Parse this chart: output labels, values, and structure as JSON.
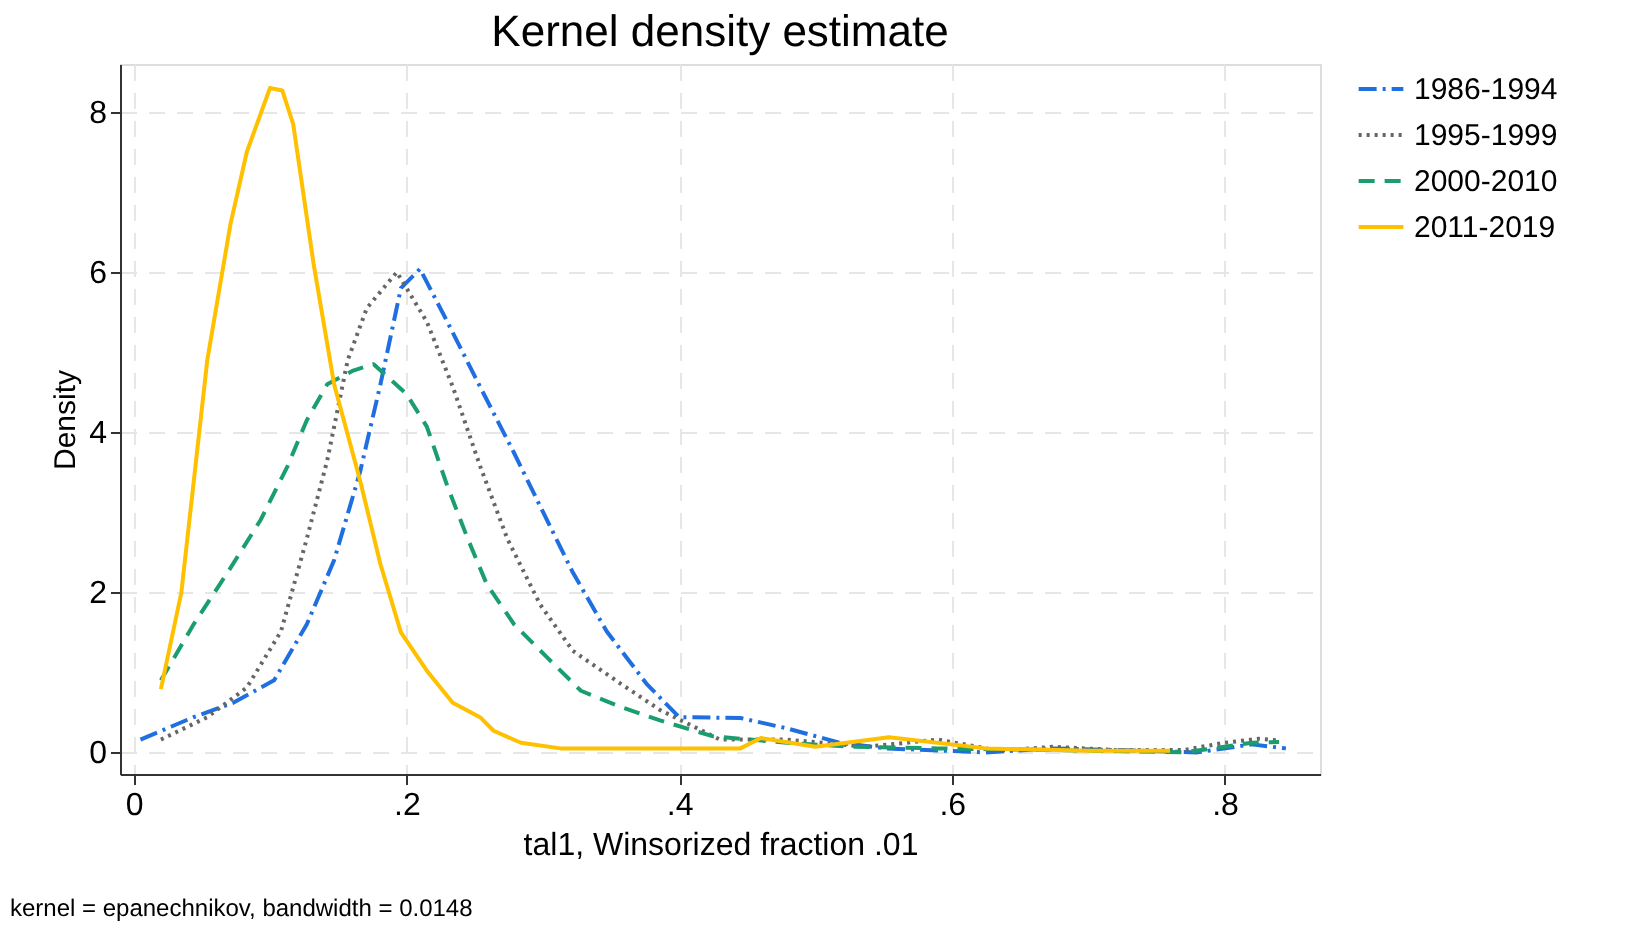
{
  "chart_data": {
    "type": "line",
    "title": "Kernel density estimate",
    "xlabel": "tal1, Winsorized fraction .01",
    "ylabel": "Density",
    "annotations": [
      "kernel = epanechnikov, bandwidth = 0.0148"
    ],
    "xlim": [
      -0.01,
      0.87
    ],
    "ylim": [
      -0.27,
      8.6
    ],
    "xticks": [
      0,
      {
        "value": 0.2,
        "label": ".2"
      },
      {
        "value": 0.4,
        "label": ".4"
      },
      {
        "value": 0.6,
        "label": ".6"
      },
      {
        "value": 0.8,
        "label": ".8"
      }
    ],
    "yticks": [
      0,
      2,
      4,
      6,
      8
    ],
    "grid": true,
    "legend": "right",
    "series": [
      {
        "name": "1986-1994",
        "color": "#1f6fe0",
        "line_style": "dashdot",
        "x": [
          0.005,
          0.044,
          0.073,
          0.103,
          0.127,
          0.147,
          0.166,
          0.181,
          0.196,
          0.21,
          0.23,
          0.254,
          0.279,
          0.298,
          0.322,
          0.347,
          0.376,
          0.4,
          0.445,
          0.479,
          0.518,
          0.552,
          0.625,
          0.674,
          0.72,
          0.78,
          0.82,
          0.845
        ],
        "values": [
          0.16,
          0.44,
          0.62,
          0.9,
          1.6,
          2.4,
          3.5,
          4.6,
          5.8,
          6.04,
          5.38,
          4.57,
          3.74,
          3.08,
          2.25,
          1.51,
          0.86,
          0.44,
          0.43,
          0.3,
          0.12,
          0.05,
          0.0,
          0.05,
          0.03,
          0.0,
          0.1,
          0.05
        ]
      },
      {
        "name": "1995-1999",
        "color": "#666666",
        "line_style": "dotted",
        "x": [
          0.02,
          0.054,
          0.083,
          0.108,
          0.127,
          0.142,
          0.157,
          0.171,
          0.193,
          0.215,
          0.234,
          0.254,
          0.274,
          0.298,
          0.322,
          0.357,
          0.386,
          0.43,
          0.479,
          0.537,
          0.59,
          0.635,
          0.674,
          0.72,
          0.77,
          0.8,
          0.825,
          0.84
        ],
        "values": [
          0.16,
          0.44,
          0.81,
          1.51,
          2.67,
          3.65,
          4.9,
          5.55,
          6.0,
          5.38,
          4.57,
          3.58,
          2.67,
          1.85,
          1.27,
          0.86,
          0.53,
          0.16,
          0.16,
          0.07,
          0.16,
          0.02,
          0.07,
          0.03,
          0.03,
          0.12,
          0.17,
          0.15
        ]
      },
      {
        "name": "2000-2010",
        "color": "#1a9e6e",
        "line_style": "dashed",
        "x": [
          0.02,
          0.044,
          0.069,
          0.093,
          0.113,
          0.127,
          0.142,
          0.161,
          0.176,
          0.2,
          0.215,
          0.23,
          0.245,
          0.259,
          0.279,
          0.303,
          0.328,
          0.357,
          0.386,
          0.425,
          0.479,
          0.528,
          0.59,
          0.674,
          0.77,
          0.8,
          0.82,
          0.84
        ],
        "values": [
          0.9,
          1.6,
          2.25,
          2.9,
          3.58,
          4.15,
          4.6,
          4.77,
          4.85,
          4.48,
          4.07,
          3.33,
          2.67,
          2.1,
          1.6,
          1.19,
          0.77,
          0.57,
          0.4,
          0.2,
          0.12,
          0.07,
          0.05,
          0.03,
          0.0,
          0.07,
          0.12,
          0.13
        ]
      },
      {
        "name": "2011-2019",
        "color": "#ffc000",
        "line_style": "solid",
        "x": [
          0.02,
          0.035,
          0.054,
          0.071,
          0.083,
          0.1,
          0.109,
          0.117,
          0.132,
          0.147,
          0.166,
          0.181,
          0.196,
          0.215,
          0.234,
          0.254,
          0.264,
          0.284,
          0.313,
          0.445,
          0.46,
          0.5,
          0.554,
          0.625,
          0.7,
          0.76
        ],
        "values": [
          0.79,
          2.0,
          4.9,
          6.6,
          7.5,
          8.3,
          8.27,
          7.85,
          6.1,
          4.6,
          3.4,
          2.35,
          1.5,
          1.02,
          0.62,
          0.44,
          0.27,
          0.12,
          0.05,
          0.05,
          0.18,
          0.07,
          0.19,
          0.05,
          0.02,
          0.02
        ]
      }
    ]
  }
}
